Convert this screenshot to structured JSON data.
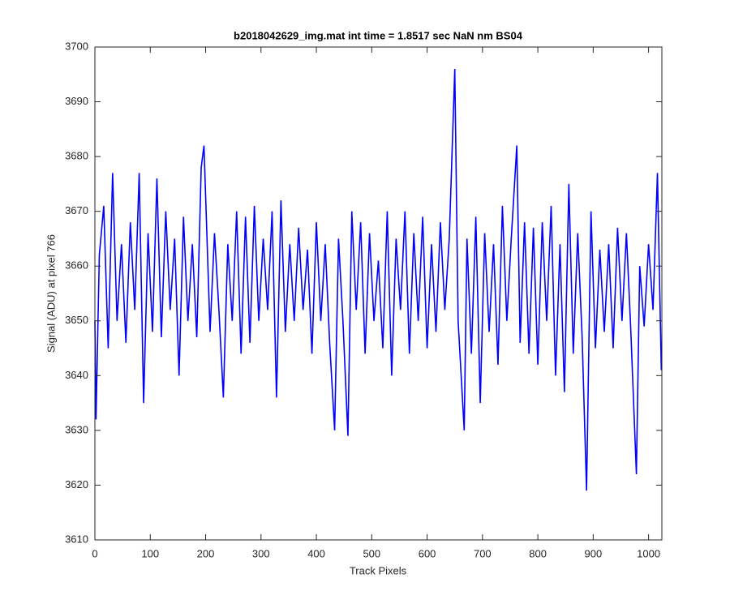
{
  "chart_data": {
    "type": "line",
    "title": "b2018042629_img.mat int time = 1.8517 sec  NaN nm BS04",
    "x_label": "Track Pixels",
    "y_label": "Signal (ADU) at pixel 766",
    "color": "#0000ff",
    "x": [
      0,
      2,
      8,
      16,
      24,
      32,
      40,
      48,
      56,
      64,
      72,
      80,
      88,
      96,
      104,
      112,
      120,
      128,
      136,
      144,
      152,
      160,
      168,
      176,
      184,
      192,
      197,
      208,
      216,
      224,
      232,
      240,
      248,
      256,
      264,
      272,
      280,
      288,
      296,
      304,
      312,
      320,
      328,
      336,
      344,
      352,
      360,
      368,
      376,
      384,
      392,
      400,
      408,
      416,
      424,
      433,
      440,
      448,
      457,
      464,
      472,
      480,
      488,
      496,
      504,
      512,
      520,
      528,
      536,
      544,
      552,
      560,
      568,
      576,
      584,
      592,
      600,
      608,
      616,
      624,
      632,
      640,
      650,
      656,
      667,
      672,
      680,
      688,
      696,
      704,
      712,
      720,
      728,
      736,
      744,
      752,
      762,
      768,
      776,
      784,
      792,
      800,
      808,
      816,
      824,
      832,
      840,
      848,
      856,
      864,
      872,
      880,
      888,
      896,
      904,
      912,
      920,
      928,
      936,
      944,
      952,
      960,
      968,
      978,
      984,
      992,
      1000,
      1008,
      1016,
      1023
    ],
    "values": [
      3650,
      3632,
      3662,
      3671,
      3645,
      3677,
      3650,
      3664,
      3646,
      3668,
      3652,
      3677,
      3635,
      3666,
      3648,
      3676,
      3647,
      3670,
      3652,
      3665,
      3640,
      3669,
      3650,
      3664,
      3647,
      3678,
      3682,
      3648,
      3666,
      3652,
      3636,
      3664,
      3650,
      3670,
      3644,
      3669,
      3646,
      3671,
      3650,
      3665,
      3652,
      3670,
      3636,
      3672,
      3648,
      3664,
      3650,
      3667,
      3652,
      3663,
      3644,
      3668,
      3650,
      3664,
      3646,
      3630,
      3665,
      3650,
      3629,
      3670,
      3652,
      3668,
      3644,
      3666,
      3650,
      3661,
      3645,
      3670,
      3640,
      3665,
      3652,
      3670,
      3644,
      3666,
      3650,
      3669,
      3645,
      3664,
      3648,
      3668,
      3652,
      3665,
      3696,
      3650,
      3630,
      3665,
      3644,
      3669,
      3635,
      3666,
      3648,
      3664,
      3642,
      3671,
      3650,
      3665,
      3682,
      3646,
      3668,
      3644,
      3667,
      3642,
      3668,
      3650,
      3671,
      3640,
      3664,
      3637,
      3675,
      3644,
      3666,
      3647,
      3619,
      3670,
      3645,
      3663,
      3648,
      3664,
      3645,
      3667,
      3650,
      3666,
      3648,
      3622,
      3660,
      3649,
      3664,
      3652,
      3677,
      3641
    ],
    "xlim": [
      0,
      1024
    ],
    "xticks": [
      0,
      100,
      200,
      300,
      400,
      500,
      600,
      700,
      800,
      900,
      1000
    ],
    "ylim": [
      3610,
      3700
    ],
    "yticks": [
      3610,
      3620,
      3630,
      3640,
      3650,
      3660,
      3670,
      3680,
      3690,
      3700
    ]
  }
}
